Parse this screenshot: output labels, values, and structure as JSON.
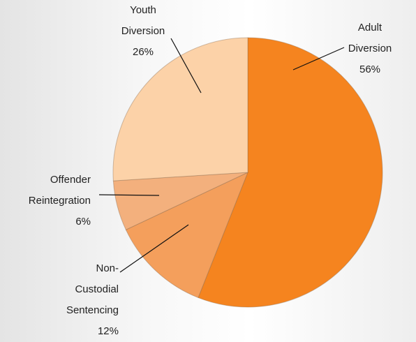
{
  "chart_data": {
    "type": "pie",
    "categories": [
      "Adult Diversion",
      "Non-Custodial Sentencing",
      "Offender Reintegration",
      "Youth Diversion"
    ],
    "values": [
      56,
      12,
      6,
      26
    ],
    "value_labels": [
      "56%",
      "12%",
      "6%",
      "26%"
    ],
    "colors": [
      "#f5841f",
      "#f49f5c",
      "#f3b07d",
      "#fcd2a8"
    ]
  }
}
